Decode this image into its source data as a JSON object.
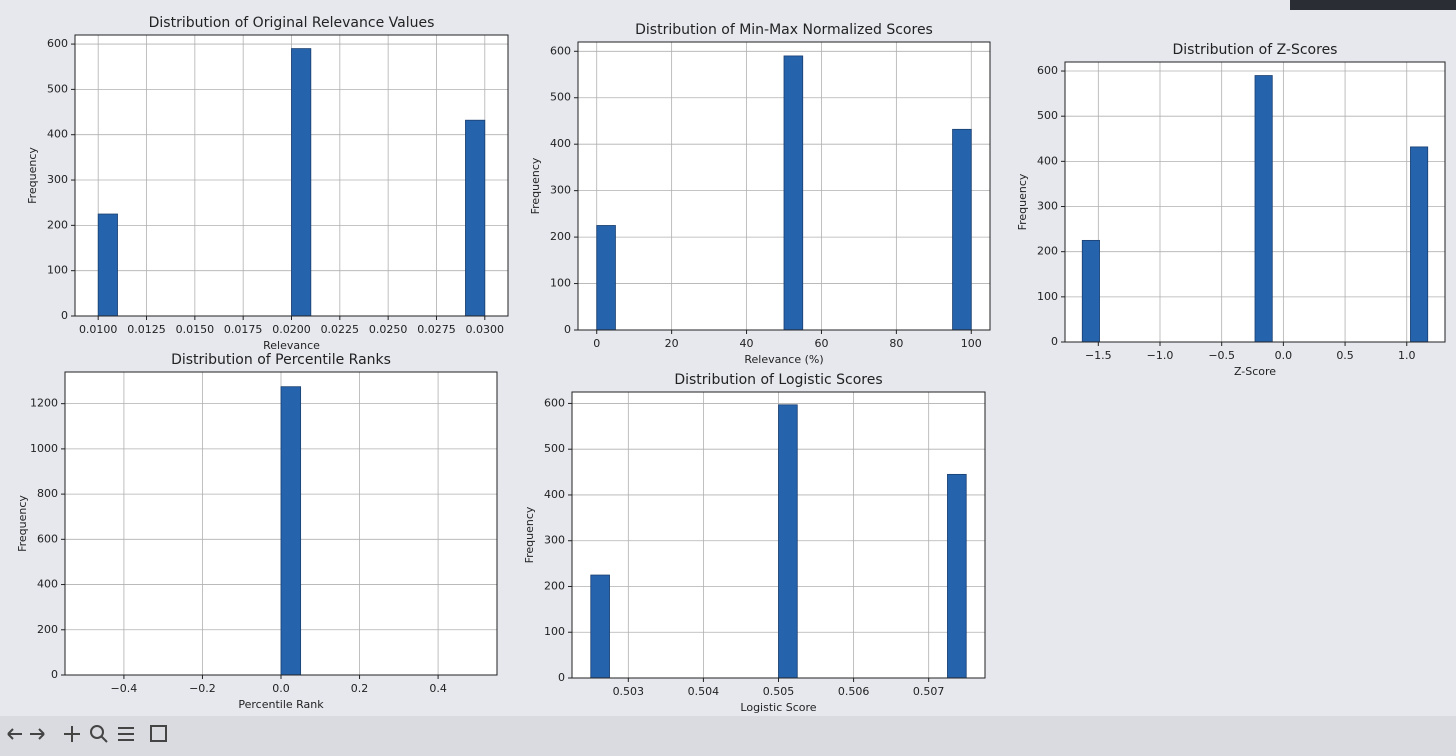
{
  "chart_data": [
    {
      "type": "histogram",
      "title": "Distribution of Original Relevance Values",
      "xlabel": "Relevance",
      "ylabel": "Frequency",
      "bins": [
        0.01,
        0.011,
        0.012,
        0.013,
        0.014,
        0.015,
        0.016,
        0.017,
        0.018,
        0.019,
        0.02,
        0.021,
        0.022,
        0.023,
        0.024,
        0.025,
        0.026,
        0.027,
        0.028,
        0.029,
        0.03
      ],
      "counts": [
        225,
        0,
        0,
        0,
        0,
        0,
        0,
        0,
        0,
        0,
        590,
        0,
        0,
        0,
        0,
        0,
        0,
        0,
        0,
        432
      ],
      "xlim": [
        0.0088,
        0.0312
      ],
      "xticks": [
        {
          "value": 0.01,
          "label": "0.0100"
        },
        {
          "value": 0.0125,
          "label": "0.0125"
        },
        {
          "value": 0.015,
          "label": "0.0150"
        },
        {
          "value": 0.0175,
          "label": "0.0175"
        },
        {
          "value": 0.02,
          "label": "0.0200"
        },
        {
          "value": 0.0225,
          "label": "0.0225"
        },
        {
          "value": 0.025,
          "label": "0.0250"
        },
        {
          "value": 0.0275,
          "label": "0.0275"
        },
        {
          "value": 0.03,
          "label": "0.0300"
        }
      ],
      "ylim": [
        0,
        620
      ],
      "yticks": [
        0,
        100,
        200,
        300,
        400,
        500,
        600
      ],
      "grid": true,
      "color": "#2563ad"
    },
    {
      "type": "histogram",
      "title": "Distribution of Min-Max Normalized Scores",
      "xlabel": "Relevance (%)",
      "ylabel": "Frequency",
      "bins": [
        0,
        5,
        10,
        15,
        20,
        25,
        30,
        35,
        40,
        45,
        50,
        55,
        60,
        65,
        70,
        75,
        80,
        85,
        90,
        95,
        100
      ],
      "counts": [
        225,
        0,
        0,
        0,
        0,
        0,
        0,
        0,
        0,
        0,
        590,
        0,
        0,
        0,
        0,
        0,
        0,
        0,
        0,
        432
      ],
      "xlim": [
        -5,
        105
      ],
      "xticks": [
        0,
        20,
        40,
        60,
        80,
        100
      ],
      "ylim": [
        0,
        620
      ],
      "yticks": [
        0,
        100,
        200,
        300,
        400,
        500,
        600
      ],
      "grid": true,
      "color": "#2563ad"
    },
    {
      "type": "histogram",
      "title": "Distribution of Z-Scores",
      "xlabel": "Z-Score",
      "ylabel": "Frequency",
      "bins": [
        -1.63,
        -1.49,
        -1.35,
        -1.21,
        -1.07,
        -0.93,
        -0.79,
        -0.65,
        -0.51,
        -0.37,
        -0.23,
        -0.09,
        0.05,
        0.19,
        0.33,
        0.47,
        0.61,
        0.75,
        0.89,
        1.03,
        1.17
      ],
      "counts": [
        225,
        0,
        0,
        0,
        0,
        0,
        0,
        0,
        0,
        0,
        590,
        0,
        0,
        0,
        0,
        0,
        0,
        0,
        0,
        432
      ],
      "xlim": [
        -1.77,
        1.31
      ],
      "xticks": [
        {
          "value": -1.5,
          "label": "−1.5"
        },
        {
          "value": -1.0,
          "label": "−1.0"
        },
        {
          "value": -0.5,
          "label": "−0.5"
        },
        {
          "value": 0,
          "label": "0.0"
        },
        0.5,
        {
          "value": 1.0,
          "label": "1.0"
        }
      ],
      "ylim": [
        0,
        620
      ],
      "yticks": [
        0,
        100,
        200,
        300,
        400,
        500,
        600
      ],
      "grid": true,
      "color": "#2563ad"
    },
    {
      "type": "histogram",
      "title": "Distribution of Percentile Ranks",
      "xlabel": "Percentile Rank",
      "ylabel": "Frequency",
      "bins": [
        -0.5,
        -0.45,
        -0.4,
        -0.35,
        -0.3,
        -0.25,
        -0.2,
        -0.15,
        -0.1,
        -0.05,
        0,
        0.05,
        0.1,
        0.15,
        0.2,
        0.25,
        0.3,
        0.35,
        0.4,
        0.45,
        0.5
      ],
      "counts": [
        0,
        0,
        0,
        0,
        0,
        0,
        0,
        0,
        0,
        0,
        1275,
        0,
        0,
        0,
        0,
        0,
        0,
        0,
        0,
        0
      ],
      "xlim": [
        -0.55,
        0.55
      ],
      "xticks": [
        {
          "value": -0.4,
          "label": "−0.4"
        },
        {
          "value": -0.2,
          "label": "−0.2"
        },
        {
          "value": 0,
          "label": "0.0"
        },
        0.2,
        0.4
      ],
      "ylim": [
        0,
        1340
      ],
      "yticks": [
        0,
        200,
        400,
        600,
        800,
        1000,
        1200
      ],
      "grid": true,
      "color": "#2563ad"
    },
    {
      "type": "histogram",
      "title": "Distribution of Logistic Scores",
      "xlabel": "Logistic Score",
      "ylabel": "Frequency",
      "bins": [
        0.5025,
        0.50275,
        0.503,
        0.50325,
        0.5035,
        0.50375,
        0.504,
        0.50425,
        0.5045,
        0.50475,
        0.505,
        0.50525,
        0.5055,
        0.50575,
        0.506,
        0.50625,
        0.5065,
        0.50675,
        0.507,
        0.50725,
        0.5075
      ],
      "counts": [
        225,
        0,
        0,
        0,
        0,
        0,
        0,
        0,
        0,
        0,
        597,
        0,
        0,
        0,
        0,
        0,
        0,
        0,
        0,
        445
      ],
      "xlim": [
        0.50225,
        0.50775
      ],
      "xticks": [
        0.503,
        0.504,
        0.505,
        0.506,
        0.507
      ],
      "ylim": [
        0,
        625
      ],
      "yticks": [
        0,
        100,
        200,
        300,
        400,
        500,
        600
      ],
      "grid": true,
      "color": "#2563ad"
    }
  ]
}
